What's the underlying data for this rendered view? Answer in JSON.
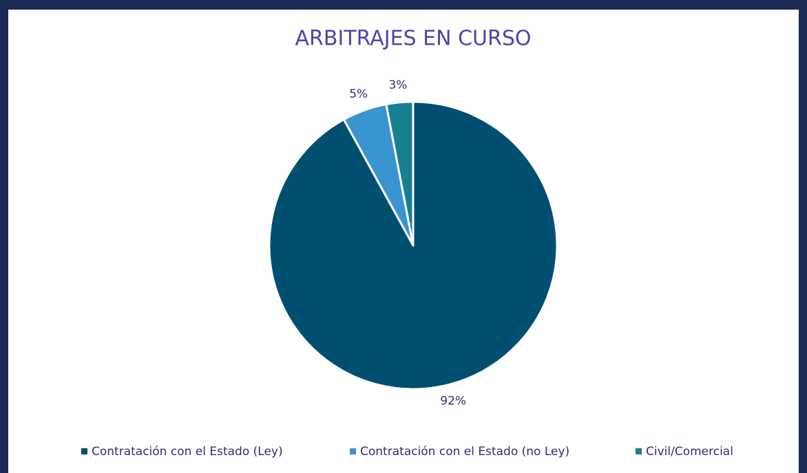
{
  "chart_data": {
    "type": "pie",
    "title": "ARBITRAJES EN CURSO",
    "categories": [
      "Contratación con el Estado (Ley)",
      "Contratación con el Estado (no Ley)",
      "Civil/Comercial"
    ],
    "values": [
      92,
      5,
      3
    ],
    "value_labels": [
      "92%",
      "5%",
      "3%"
    ],
    "colors": [
      "#004f71",
      "#3a94d0",
      "#168090"
    ],
    "legend": "bottom"
  }
}
